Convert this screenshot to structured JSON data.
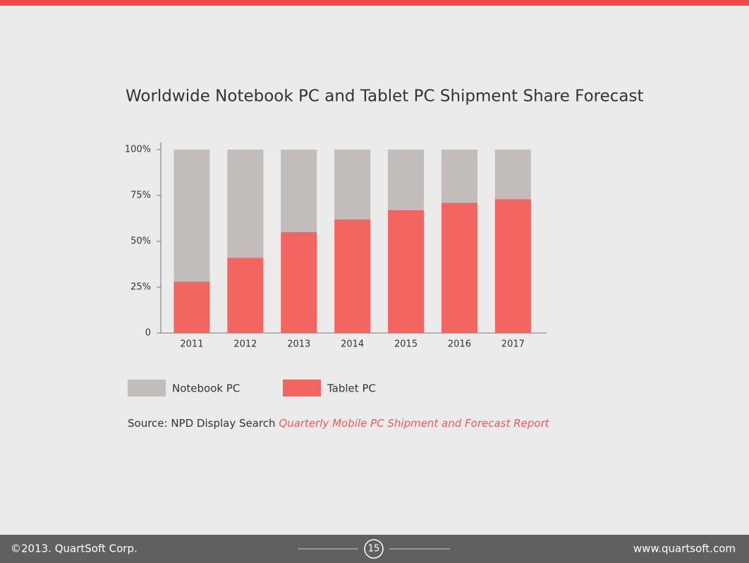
{
  "chart_data": {
    "type": "stacked_bar",
    "title": "Worldwide Notebook PC and Tablet PC Shipment Share Forecast",
    "categories": [
      "2011",
      "2012",
      "2013",
      "2014",
      "2015",
      "2016",
      "2017"
    ],
    "series": [
      {
        "name": "Notebook PC",
        "color": "#c2bcbb",
        "values": [
          72,
          59,
          45,
          38,
          33,
          29,
          27
        ]
      },
      {
        "name": "Tablet PC",
        "color": "#f26561",
        "values": [
          28,
          41,
          55,
          62,
          67,
          71,
          73
        ]
      }
    ],
    "ylim": [
      0,
      100
    ],
    "yticks": [
      0,
      {
        "value": 25,
        "label": "25%"
      },
      {
        "value": 50,
        "label": "50%"
      },
      {
        "value": 75,
        "label": "75%"
      },
      {
        "value": 100,
        "label": "100%"
      }
    ],
    "grid": false
  },
  "source": {
    "prefix": "Source: NPD Display Search",
    "report": "Quarterly Mobile PC Shipment and Forecast Report"
  },
  "footer": {
    "copyright": "©2013. QuartSoft Corp.",
    "page": "15",
    "website": "www.quartsoft.com"
  }
}
